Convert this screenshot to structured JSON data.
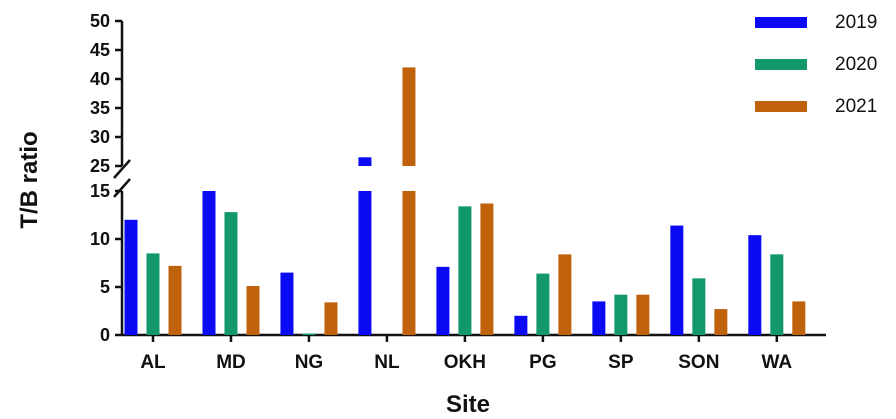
{
  "chart_data": {
    "type": "bar",
    "xlabel": "Site",
    "ylabel": "T/B ratio",
    "categories": [
      "AL",
      "MD",
      "NG",
      "NL",
      "OKH",
      "PG",
      "SP",
      "SON",
      "WA"
    ],
    "series": [
      {
        "name": "2019",
        "color": "#0a0af5",
        "values": [
          12.0,
          15.0,
          6.5,
          26.5,
          7.1,
          2.0,
          3.5,
          11.4,
          10.4
        ]
      },
      {
        "name": "2020",
        "color": "#12986a",
        "values": [
          8.5,
          12.8,
          0.1,
          0,
          13.4,
          6.4,
          4.2,
          5.9,
          8.4
        ]
      },
      {
        "name": "2021",
        "color": "#c0620c",
        "values": [
          7.2,
          5.1,
          3.4,
          42.0,
          13.7,
          8.4,
          4.2,
          2.7,
          3.5
        ]
      }
    ],
    "y_axis_break": {
      "lower_range": [
        0,
        15
      ],
      "upper_range": [
        25,
        50
      ]
    },
    "y_ticks_lower": [
      0,
      5,
      10,
      15
    ],
    "y_ticks_upper": [
      25,
      30,
      35,
      40,
      45,
      50
    ],
    "legend_position": "top-right",
    "grid": false
  }
}
